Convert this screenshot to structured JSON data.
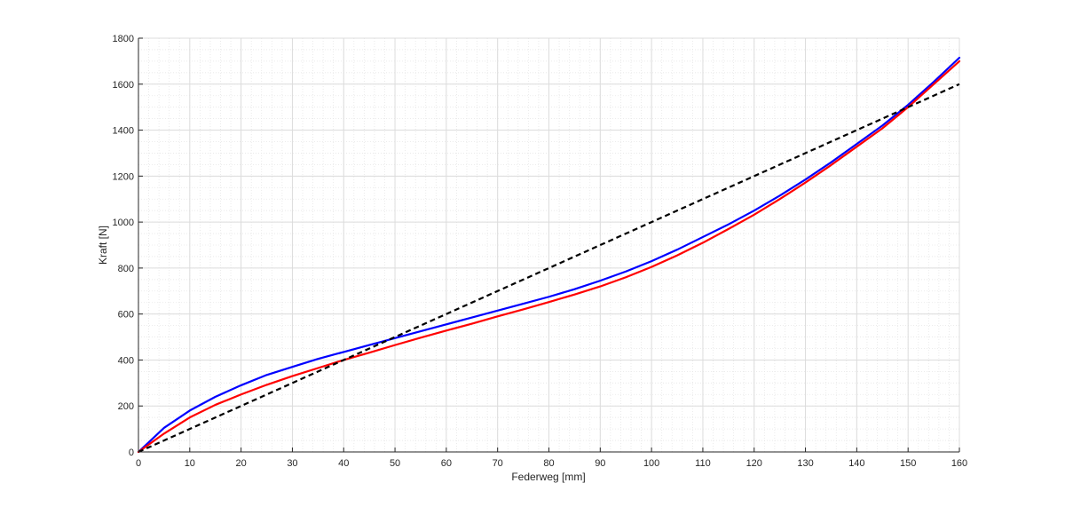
{
  "chart_data": {
    "type": "line",
    "title": "",
    "xlabel": "Federweg [mm]",
    "ylabel": "Kraft [N]",
    "xlim": [
      0,
      160
    ],
    "ylim": [
      0,
      1800
    ],
    "xticks": [
      0,
      10,
      20,
      30,
      40,
      50,
      60,
      70,
      80,
      90,
      100,
      110,
      120,
      130,
      140,
      150,
      160
    ],
    "yticks": [
      0,
      200,
      400,
      600,
      800,
      1000,
      1200,
      1400,
      1600,
      1800
    ],
    "grid": true,
    "minor_grid": true,
    "legend": "none",
    "series": [
      {
        "color": "#0000ff",
        "style": "solid",
        "x": [
          0,
          5,
          10,
          15,
          20,
          25,
          30,
          35,
          40,
          45,
          50,
          55,
          60,
          65,
          70,
          75,
          80,
          85,
          90,
          95,
          100,
          105,
          110,
          115,
          120,
          125,
          130,
          135,
          140,
          145,
          150,
          155,
          160
        ],
        "y": [
          0,
          105,
          180,
          240,
          290,
          335,
          370,
          405,
          435,
          465,
          495,
          525,
          555,
          585,
          615,
          645,
          675,
          708,
          745,
          785,
          830,
          880,
          935,
          990,
          1050,
          1115,
          1185,
          1260,
          1340,
          1420,
          1510,
          1610,
          1715
        ]
      },
      {
        "color": "#ff0000",
        "style": "solid",
        "x": [
          0,
          5,
          10,
          15,
          20,
          25,
          30,
          35,
          40,
          45,
          50,
          55,
          60,
          65,
          70,
          75,
          80,
          85,
          90,
          95,
          100,
          105,
          110,
          115,
          120,
          125,
          130,
          135,
          140,
          145,
          150,
          155,
          160
        ],
        "y": [
          0,
          80,
          150,
          205,
          250,
          292,
          330,
          365,
          400,
          432,
          465,
          497,
          528,
          558,
          590,
          620,
          652,
          685,
          720,
          760,
          805,
          855,
          910,
          970,
          1032,
          1100,
          1172,
          1248,
          1328,
          1408,
          1500,
          1600,
          1700
        ]
      },
      {
        "color": "#000000",
        "style": "dashed",
        "x": [
          0,
          160
        ],
        "y": [
          0,
          1600
        ]
      }
    ]
  }
}
